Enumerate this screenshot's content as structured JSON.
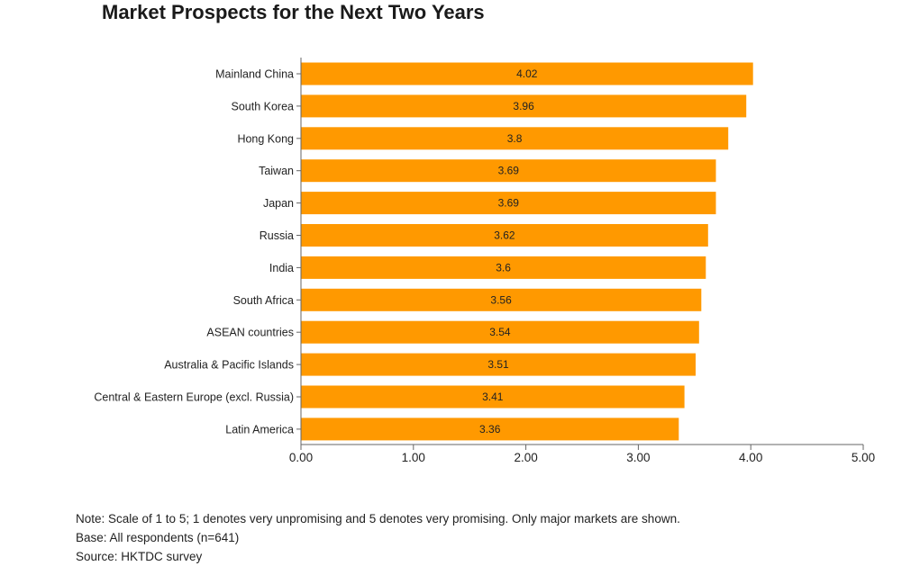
{
  "chart_data": {
    "type": "bar",
    "orientation": "horizontal",
    "title": "Market Prospects for the Next Two Years",
    "categories": [
      "Mainland China",
      "South Korea",
      "Hong Kong",
      "Taiwan",
      "Japan",
      "Russia",
      "India",
      "South Africa",
      "ASEAN countries",
      "Australia & Pacific Islands",
      "Central & Eastern Europe (excl. Russia)",
      "Latin America"
    ],
    "values": [
      4.02,
      3.96,
      3.8,
      3.69,
      3.69,
      3.62,
      3.6,
      3.56,
      3.54,
      3.51,
      3.41,
      3.36
    ],
    "value_labels": [
      "4.02",
      "3.96",
      "3.8",
      "3.69",
      "3.69",
      "3.62",
      "3.6",
      "3.56",
      "3.54",
      "3.51",
      "3.41",
      "3.36"
    ],
    "xlim": [
      0,
      5
    ],
    "x_ticks": [
      0,
      1,
      2,
      3,
      4,
      5
    ],
    "x_tick_labels": [
      "0.00",
      "1.00",
      "2.00",
      "3.00",
      "4.00",
      "5.00"
    ],
    "xlabel": "",
    "ylabel": "",
    "grid": false,
    "bar_color": "#FF9900"
  },
  "notes": {
    "note": "Note: Scale of 1 to 5; 1 denotes very unpromising and 5 denotes very promising. Only major markets are shown.",
    "base": "Base: All respondents (n=641)",
    "source": "Source: HKTDC survey"
  }
}
